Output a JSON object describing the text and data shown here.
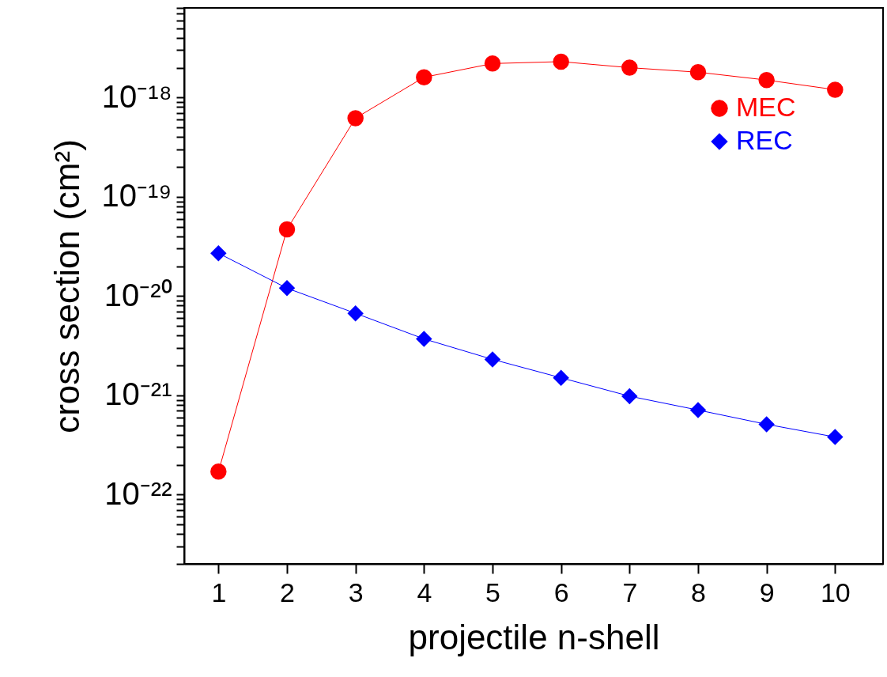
{
  "chart_data": {
    "type": "line",
    "xlabel": "projectile n-shell",
    "ylabel": "cross section (cm²)",
    "x": [
      1,
      2,
      3,
      4,
      5,
      6,
      7,
      8,
      9,
      10
    ],
    "series": [
      {
        "name": "MEC",
        "color": "#ff0000",
        "marker": "circle",
        "values": [
          1.7e-22,
          4.7e-20,
          6.2e-19,
          1.6e-18,
          2.2e-18,
          2.3e-18,
          2e-18,
          1.8e-18,
          1.5e-18,
          1.2e-18
        ]
      },
      {
        "name": "REC",
        "color": "#0000ff",
        "marker": "diamond",
        "values": [
          2.7e-20,
          1.2e-20,
          6.7e-21,
          3.7e-21,
          2.3e-21,
          1.5e-21,
          9.8e-22,
          7.1e-22,
          5.1e-22,
          3.8e-22
        ]
      }
    ],
    "log": "y",
    "xlim": [
      0.5,
      10.7
    ],
    "xticks": [
      1,
      2,
      3,
      4,
      5,
      6,
      7,
      8,
      9,
      10
    ],
    "ylim": [
      2e-23,
      8e-18
    ],
    "yticks": [
      {
        "value": 8e-18,
        "label": null
      },
      {
        "value": 7e-18,
        "label": null
      },
      {
        "value": 6e-18,
        "label": null
      },
      {
        "value": 5e-18,
        "label": null
      },
      {
        "value": 4e-18,
        "label": null
      },
      {
        "value": 3e-18,
        "label": null
      },
      {
        "value": 2e-18,
        "label": null
      },
      {
        "value": 1e-18,
        "label": "10⁻¹⁸"
      },
      {
        "value": 9e-19,
        "label": null
      },
      {
        "value": 8e-19,
        "label": null
      },
      {
        "value": 7e-19,
        "label": null
      },
      {
        "value": 6e-19,
        "label": null
      },
      {
        "value": 5e-19,
        "label": null
      },
      {
        "value": 4e-19,
        "label": null
      },
      {
        "value": 3e-19,
        "label": null
      },
      {
        "value": 2e-19,
        "label": null
      },
      {
        "value": 1e-19,
        "label": "10⁻¹⁹"
      },
      {
        "value": 9e-20,
        "label": null
      },
      {
        "value": 8e-20,
        "label": null
      },
      {
        "value": 7e-20,
        "label": null
      },
      {
        "value": 6e-20,
        "label": null
      },
      {
        "value": 5e-20,
        "label": null
      },
      {
        "value": 4e-20,
        "label": null
      },
      {
        "value": 3e-20,
        "label": null
      },
      {
        "value": 2e-20,
        "label": null
      },
      {
        "value": 1e-20,
        "label": "10⁻²⁰"
      },
      {
        "value": 9e-21,
        "label": null
      },
      {
        "value": 8e-21,
        "label": null
      },
      {
        "value": 7e-21,
        "label": null
      },
      {
        "value": 6e-21,
        "label": null
      },
      {
        "value": 5e-21,
        "label": null
      },
      {
        "value": 4e-21,
        "label": null
      },
      {
        "value": 3e-21,
        "label": null
      },
      {
        "value": 2e-21,
        "label": null
      },
      {
        "value": 1e-21,
        "label": "10⁻²¹"
      },
      {
        "value": 9e-22,
        "label": null
      },
      {
        "value": 8e-22,
        "label": null
      },
      {
        "value": 7e-22,
        "label": null
      },
      {
        "value": 6e-22,
        "label": null
      },
      {
        "value": 5e-22,
        "label": null
      },
      {
        "value": 4e-22,
        "label": null
      },
      {
        "value": 3e-22,
        "label": null
      },
      {
        "value": 2e-22,
        "label": null
      },
      {
        "value": 1e-22,
        "label": "10⁻²²"
      },
      {
        "value": 9e-23,
        "label": null
      },
      {
        "value": 8e-23,
        "label": null
      },
      {
        "value": 7e-23,
        "label": null
      },
      {
        "value": 6e-23,
        "label": null
      },
      {
        "value": 5e-23,
        "label": null
      },
      {
        "value": 4e-23,
        "label": null
      },
      {
        "value": 3e-23,
        "label": null
      },
      {
        "value": 2e-23,
        "label": null
      }
    ],
    "grid": false,
    "legend": "top right",
    "line_style": "solid"
  }
}
